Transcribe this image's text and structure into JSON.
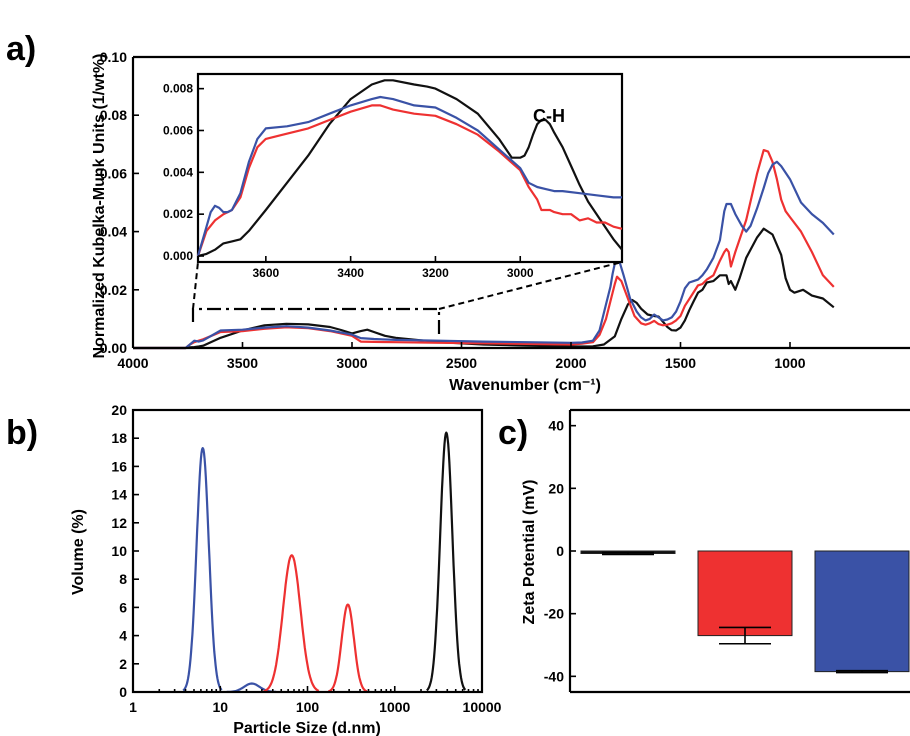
{
  "colors": {
    "black": "#111111",
    "red": "#ee3131",
    "blue": "#3a52a6"
  },
  "chart_data": [
    {
      "panel": "a)",
      "type": "line",
      "xlabel": "Wavenumber (cm⁻¹)",
      "ylabel": "Normalized Kubelka-Munk Units (1/wt%)",
      "xlim": [
        4000,
        800
      ],
      "x_reversed": true,
      "ylim": [
        0,
        0.1
      ],
      "xticks": [
        "4000",
        "3500",
        "3000",
        "2500",
        "2000",
        "1500",
        "1000"
      ],
      "yticks": [
        "0.00",
        "0.02",
        "0.04",
        "0.06",
        "0.08",
        "0.10"
      ],
      "series": [
        {
          "color": "black",
          "x": [
            4000,
            3760,
            3740,
            3720,
            3700,
            3680,
            3600,
            3500,
            3400,
            3300,
            3200,
            3100,
            3050,
            3000,
            2960,
            2930,
            2900,
            2850,
            2800,
            2600,
            2400,
            2200,
            2000,
            1900,
            1850,
            1800,
            1770,
            1740,
            1720,
            1700,
            1680,
            1650,
            1620,
            1600,
            1580,
            1560,
            1540,
            1520,
            1500,
            1480,
            1460,
            1440,
            1420,
            1400,
            1380,
            1350,
            1320,
            1290,
            1280,
            1270,
            1250,
            1230,
            1200,
            1150,
            1120,
            1080,
            1040,
            1020,
            1000,
            980,
            940,
            900,
            850,
            800
          ],
          "y": [
            0,
            0,
            0.0002,
            0.0003,
            0.0005,
            0.0008,
            0.0035,
            0.006,
            0.0078,
            0.0083,
            0.0081,
            0.0072,
            0.0062,
            0.005,
            0.0058,
            0.0063,
            0.0055,
            0.0042,
            0.0035,
            0.002,
            0.0012,
            0.0008,
            0.0005,
            0.0006,
            0.0012,
            0.004,
            0.01,
            0.015,
            0.0165,
            0.0155,
            0.0135,
            0.0115,
            0.011,
            0.0108,
            0.009,
            0.0072,
            0.0061,
            0.006,
            0.007,
            0.0095,
            0.013,
            0.016,
            0.019,
            0.02,
            0.0225,
            0.023,
            0.025,
            0.025,
            0.022,
            0.023,
            0.02,
            0.024,
            0.031,
            0.038,
            0.041,
            0.039,
            0.032,
            0.024,
            0.02,
            0.019,
            0.02,
            0.018,
            0.017,
            0.014
          ]
        },
        {
          "color": "red",
          "x": [
            4000,
            3760,
            3740,
            3720,
            3700,
            3680,
            3600,
            3500,
            3400,
            3300,
            3200,
            3100,
            3000,
            2960,
            2900,
            2800,
            2600,
            2400,
            2200,
            2000,
            1950,
            1900,
            1870,
            1840,
            1820,
            1800,
            1790,
            1770,
            1740,
            1710,
            1680,
            1660,
            1640,
            1620,
            1600,
            1580,
            1560,
            1540,
            1520,
            1500,
            1480,
            1450,
            1420,
            1400,
            1380,
            1350,
            1320,
            1300,
            1290,
            1280,
            1270,
            1250,
            1200,
            1150,
            1120,
            1100,
            1080,
            1060,
            1040,
            1020,
            1000,
            950,
            900,
            850,
            800
          ],
          "y": [
            0,
            0,
            0.0012,
            0.002,
            0.0025,
            0.003,
            0.0055,
            0.0058,
            0.0066,
            0.0071,
            0.0068,
            0.0058,
            0.0042,
            0.0022,
            0.0021,
            0.002,
            0.0018,
            0.0016,
            0.0014,
            0.0012,
            0.0015,
            0.002,
            0.0045,
            0.01,
            0.016,
            0.022,
            0.0245,
            0.023,
            0.017,
            0.011,
            0.0085,
            0.008,
            0.0085,
            0.0093,
            0.0082,
            0.0078,
            0.008,
            0.0085,
            0.0095,
            0.011,
            0.0145,
            0.018,
            0.0215,
            0.022,
            0.0235,
            0.025,
            0.03,
            0.033,
            0.034,
            0.033,
            0.028,
            0.033,
            0.044,
            0.06,
            0.068,
            0.0675,
            0.064,
            0.058,
            0.051,
            0.047,
            0.045,
            0.04,
            0.033,
            0.025,
            0.021
          ]
        },
        {
          "color": "blue",
          "x": [
            4000,
            3760,
            3740,
            3720,
            3700,
            3680,
            3600,
            3500,
            3400,
            3300,
            3200,
            3100,
            3000,
            2960,
            2900,
            2800,
            2600,
            2400,
            2200,
            2000,
            1950,
            1900,
            1870,
            1840,
            1820,
            1810,
            1800,
            1790,
            1780,
            1760,
            1730,
            1700,
            1680,
            1660,
            1640,
            1620,
            1600,
            1580,
            1560,
            1540,
            1520,
            1500,
            1480,
            1460,
            1440,
            1420,
            1400,
            1380,
            1350,
            1320,
            1300,
            1290,
            1270,
            1250,
            1220,
            1200,
            1180,
            1150,
            1120,
            1100,
            1080,
            1060,
            1040,
            1000,
            950,
            900,
            850,
            800
          ],
          "y": [
            0,
            0,
            0.0012,
            0.0025,
            0.0022,
            0.0026,
            0.006,
            0.0063,
            0.007,
            0.0075,
            0.007,
            0.006,
            0.0046,
            0.0034,
            0.0031,
            0.0028,
            0.0025,
            0.0022,
            0.002,
            0.0018,
            0.0019,
            0.0025,
            0.006,
            0.015,
            0.021,
            0.0255,
            0.029,
            0.0305,
            0.03,
            0.025,
            0.017,
            0.0125,
            0.0105,
            0.0095,
            0.01,
            0.0115,
            0.0105,
            0.0095,
            0.0098,
            0.0105,
            0.0125,
            0.016,
            0.0205,
            0.0225,
            0.023,
            0.0235,
            0.025,
            0.027,
            0.031,
            0.037,
            0.047,
            0.0495,
            0.0495,
            0.046,
            0.042,
            0.04,
            0.042,
            0.048,
            0.055,
            0.06,
            0.063,
            0.064,
            0.0625,
            0.058,
            0.05,
            0.046,
            0.043,
            0.039
          ]
        }
      ],
      "inset": {
        "xlim": [
          3760,
          2760
        ],
        "ylim": [
          0,
          0.0087
        ],
        "xticks": [
          "3600",
          "3400",
          "3200",
          "3000"
        ],
        "yticks": [
          "0.000",
          "0.002",
          "0.004",
          "0.006",
          "0.008"
        ],
        "annotation": "C-H",
        "series": [
          {
            "color": "black",
            "x": [
              3760,
              3740,
              3720,
              3700,
              3680,
              3660,
              3640,
              3600,
              3550,
              3500,
              3450,
              3400,
              3350,
              3320,
              3300,
              3250,
              3220,
              3200,
              3150,
              3100,
              3050,
              3020,
              3000,
              2990,
              2980,
              2970,
              2960,
              2950,
              2940,
              2930,
              2920,
              2900,
              2880,
              2860,
              2840,
              2820,
              2800,
              2780,
              2760
            ],
            "y": [
              0,
              0.0001,
              0.0003,
              0.0006,
              0.0007,
              0.0008,
              0.0012,
              0.0022,
              0.0035,
              0.0048,
              0.0063,
              0.0075,
              0.0082,
              0.0084,
              0.0084,
              0.0082,
              0.0081,
              0.008,
              0.0075,
              0.0068,
              0.0056,
              0.0047,
              0.0047,
              0.0048,
              0.0052,
              0.0058,
              0.0063,
              0.0065,
              0.0065,
              0.0063,
              0.0059,
              0.0052,
              0.0043,
              0.0034,
              0.0026,
              0.002,
              0.0014,
              0.0008,
              0.0003
            ]
          },
          {
            "color": "red",
            "x": [
              3760,
              3740,
              3720,
              3700,
              3690,
              3680,
              3660,
              3640,
              3620,
              3600,
              3560,
              3500,
              3450,
              3400,
              3350,
              3330,
              3300,
              3250,
              3200,
              3150,
              3100,
              3050,
              3000,
              2980,
              2960,
              2950,
              2940,
              2930,
              2920,
              2900,
              2880,
              2860,
              2840,
              2820,
              2800,
              2780,
              2760
            ],
            "y": [
              0,
              0.0012,
              0.0017,
              0.002,
              0.0021,
              0.0022,
              0.0028,
              0.0042,
              0.0052,
              0.0056,
              0.0058,
              0.0061,
              0.0065,
              0.0069,
              0.0072,
              0.0072,
              0.007,
              0.0068,
              0.0067,
              0.0063,
              0.0058,
              0.005,
              0.0041,
              0.0033,
              0.0027,
              0.0022,
              0.0022,
              0.0022,
              0.0021,
              0.002,
              0.002,
              0.0017,
              0.0018,
              0.0016,
              0.0016,
              0.0014,
              0.0013
            ]
          },
          {
            "color": "blue",
            "x": [
              3760,
              3740,
              3730,
              3720,
              3710,
              3700,
              3690,
              3680,
              3660,
              3640,
              3620,
              3600,
              3550,
              3500,
              3450,
              3400,
              3350,
              3330,
              3300,
              3250,
              3200,
              3150,
              3100,
              3050,
              3000,
              2980,
              2960,
              2940,
              2920,
              2900,
              2860,
              2820,
              2780,
              2760
            ],
            "y": [
              0,
              0.0014,
              0.0021,
              0.0024,
              0.0023,
              0.0021,
              0.0021,
              0.0022,
              0.003,
              0.0045,
              0.0056,
              0.0061,
              0.0062,
              0.0064,
              0.0068,
              0.0072,
              0.0075,
              0.0076,
              0.0075,
              0.0072,
              0.0071,
              0.0066,
              0.006,
              0.0051,
              0.0042,
              0.0035,
              0.0033,
              0.0032,
              0.0031,
              0.0031,
              0.003,
              0.0029,
              0.0028,
              0.0028
            ]
          }
        ]
      }
    },
    {
      "panel": "b)",
      "type": "line",
      "xlabel": "Particle Size (d.nm)",
      "ylabel": "Volume (%)",
      "xscale": "log",
      "xlim": [
        1,
        10000
      ],
      "ylim": [
        0,
        20
      ],
      "xticks": [
        "1",
        "10",
        "100",
        "1000",
        "10000"
      ],
      "yticks": [
        "0",
        "2",
        "4",
        "6",
        "8",
        "10",
        "12",
        "14",
        "16",
        "18",
        "20"
      ],
      "peaks": [
        {
          "color": "blue",
          "center": 6.3,
          "height": 17.3,
          "sigma": 0.07
        },
        {
          "color": "blue",
          "center": 23,
          "height": 0.6,
          "sigma": 0.09
        },
        {
          "color": "red",
          "center": 66,
          "height": 9.7,
          "sigma": 0.1
        },
        {
          "color": "red",
          "center": 290,
          "height": 6.2,
          "sigma": 0.07
        },
        {
          "color": "black",
          "center": 3900,
          "height": 18.4,
          "sigma": 0.07
        }
      ]
    },
    {
      "panel": "c)",
      "type": "bar",
      "ylabel": "Zeta Potential (mV)",
      "ylim": [
        -45,
        45
      ],
      "yticks": [
        "40",
        "20",
        "0",
        "-20",
        "-40"
      ],
      "values": [
        -0.8,
        -27,
        -38.5
      ],
      "errors": [
        0.3,
        2.6,
        0.3
      ],
      "colors": [
        "black",
        "red",
        "blue"
      ]
    }
  ]
}
